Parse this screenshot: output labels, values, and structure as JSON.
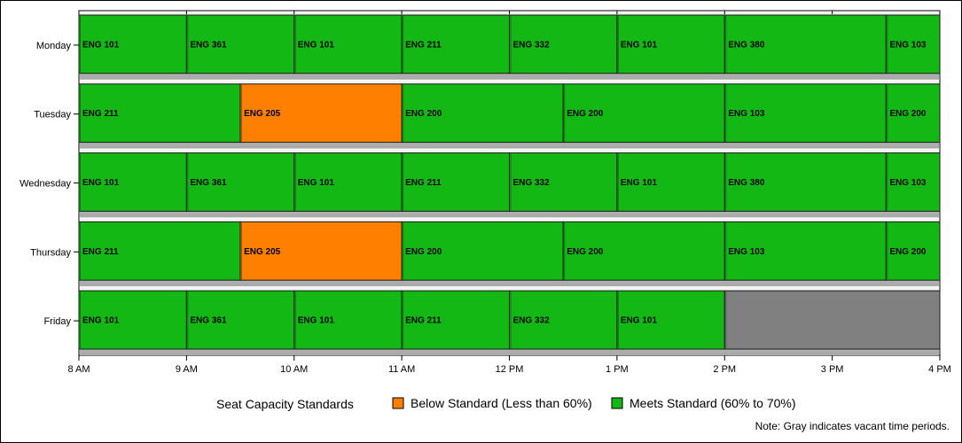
{
  "chart_data": {
    "type": "gantt",
    "x_ticks": [
      "8 AM",
      "9 AM",
      "10 AM",
      "11 AM",
      "12 PM",
      "1 PM",
      "2 PM",
      "3 PM",
      "4 PM"
    ],
    "x_range": [
      8,
      16
    ],
    "days": [
      "Monday",
      "Tuesday",
      "Wednesday",
      "Thursday",
      "Friday"
    ],
    "categories": {
      "below": {
        "label": "Below Standard (Less than 60%)",
        "color": "#FF8000"
      },
      "meets": {
        "label": "Meets Standard (60% to 70%)",
        "color": "#14B814"
      },
      "vacant": {
        "color": "#808080"
      }
    },
    "legend_title": "Seat Capacity Standards",
    "note": "Note: Gray indicates vacant time periods.",
    "schedule": [
      {
        "day": "Monday",
        "blocks": [
          {
            "course": "ENG 101",
            "start": 8,
            "end": 9,
            "status": "meets"
          },
          {
            "course": "ENG 361",
            "start": 9,
            "end": 10,
            "status": "meets"
          },
          {
            "course": "ENG 101",
            "start": 10,
            "end": 11,
            "status": "meets"
          },
          {
            "course": "ENG 211",
            "start": 11,
            "end": 12,
            "status": "meets"
          },
          {
            "course": "ENG 332",
            "start": 12,
            "end": 13,
            "status": "meets"
          },
          {
            "course": "ENG 101",
            "start": 13,
            "end": 14,
            "status": "meets"
          },
          {
            "course": "ENG 380",
            "start": 14,
            "end": 15.5,
            "status": "meets"
          },
          {
            "course": "ENG 103",
            "start": 15.5,
            "end": 16,
            "status": "meets"
          }
        ]
      },
      {
        "day": "Tuesday",
        "blocks": [
          {
            "course": "ENG 211",
            "start": 8,
            "end": 9.5,
            "status": "meets"
          },
          {
            "course": "ENG 205",
            "start": 9.5,
            "end": 11,
            "status": "below"
          },
          {
            "course": "ENG 200",
            "start": 11,
            "end": 12.5,
            "status": "meets"
          },
          {
            "course": "ENG 200",
            "start": 12.5,
            "end": 14,
            "status": "meets"
          },
          {
            "course": "ENG 103",
            "start": 14,
            "end": 15.5,
            "status": "meets"
          },
          {
            "course": "ENG 200",
            "start": 15.5,
            "end": 16,
            "status": "meets"
          }
        ]
      },
      {
        "day": "Wednesday",
        "blocks": [
          {
            "course": "ENG 101",
            "start": 8,
            "end": 9,
            "status": "meets"
          },
          {
            "course": "ENG 361",
            "start": 9,
            "end": 10,
            "status": "meets"
          },
          {
            "course": "ENG 101",
            "start": 10,
            "end": 11,
            "status": "meets"
          },
          {
            "course": "ENG 211",
            "start": 11,
            "end": 12,
            "status": "meets"
          },
          {
            "course": "ENG 332",
            "start": 12,
            "end": 13,
            "status": "meets"
          },
          {
            "course": "ENG 101",
            "start": 13,
            "end": 14,
            "status": "meets"
          },
          {
            "course": "ENG 380",
            "start": 14,
            "end": 15.5,
            "status": "meets"
          },
          {
            "course": "ENG 103",
            "start": 15.5,
            "end": 16,
            "status": "meets"
          }
        ]
      },
      {
        "day": "Thursday",
        "blocks": [
          {
            "course": "ENG 211",
            "start": 8,
            "end": 9.5,
            "status": "meets"
          },
          {
            "course": "ENG 205",
            "start": 9.5,
            "end": 11,
            "status": "below"
          },
          {
            "course": "ENG 200",
            "start": 11,
            "end": 12.5,
            "status": "meets"
          },
          {
            "course": "ENG 200",
            "start": 12.5,
            "end": 14,
            "status": "meets"
          },
          {
            "course": "ENG 103",
            "start": 14,
            "end": 15.5,
            "status": "meets"
          },
          {
            "course": "ENG 200",
            "start": 15.5,
            "end": 16,
            "status": "meets"
          }
        ]
      },
      {
        "day": "Friday",
        "blocks": [
          {
            "course": "ENG 101",
            "start": 8,
            "end": 9,
            "status": "meets"
          },
          {
            "course": "ENG 361",
            "start": 9,
            "end": 10,
            "status": "meets"
          },
          {
            "course": "ENG 101",
            "start": 10,
            "end": 11,
            "status": "meets"
          },
          {
            "course": "ENG 211",
            "start": 11,
            "end": 12,
            "status": "meets"
          },
          {
            "course": "ENG 332",
            "start": 12,
            "end": 13,
            "status": "meets"
          },
          {
            "course": "ENG 101",
            "start": 13,
            "end": 14,
            "status": "meets"
          },
          {
            "course": "",
            "start": 14,
            "end": 16,
            "status": "vacant"
          }
        ]
      }
    ]
  }
}
